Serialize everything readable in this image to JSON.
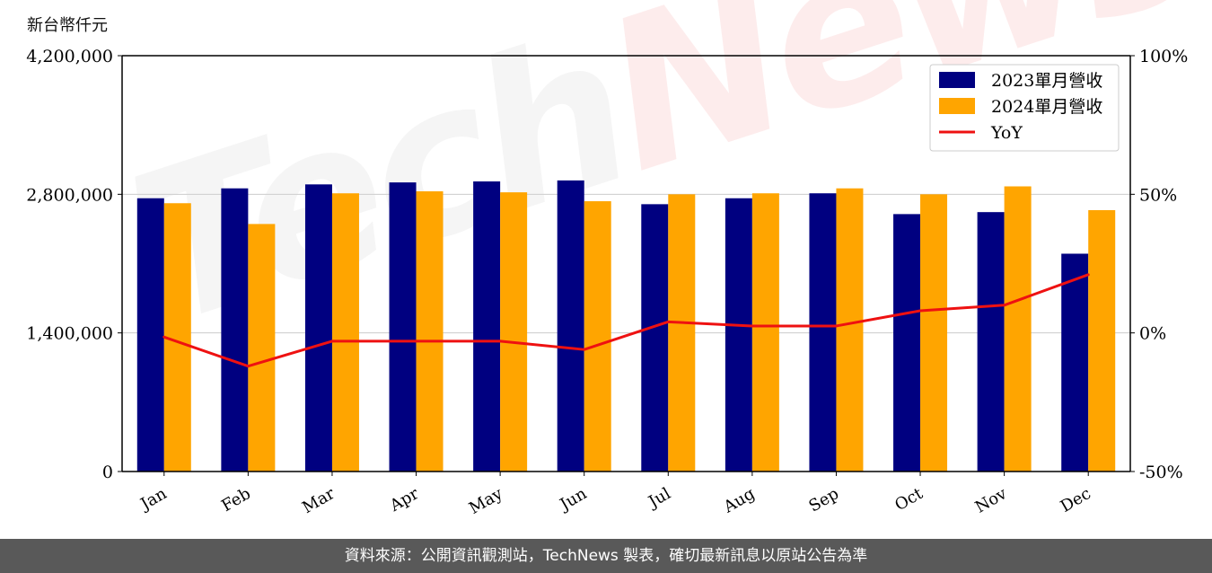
{
  "unit_label": "新台幣仟元",
  "watermark": {
    "part1": "Tech",
    "part2": "News"
  },
  "footer_text": "資料來源：公開資訊觀測站，TechNews 製表，確切最新訊息以原站公告為準",
  "colors": {
    "bar2023": "#000080",
    "bar2024": "#FFA500",
    "yoy": "#EE1111",
    "grid": "#cccccc"
  },
  "chart_data": {
    "type": "bar",
    "categories": [
      "Jan",
      "Feb",
      "Mar",
      "Apr",
      "May",
      "Jun",
      "Jul",
      "Aug",
      "Sep",
      "Oct",
      "Nov",
      "Dec"
    ],
    "series": [
      {
        "name": "2023單月營收",
        "type": "bar",
        "axis": "left",
        "values": [
          2760000,
          2860000,
          2900000,
          2920000,
          2930000,
          2940000,
          2700000,
          2760000,
          2810000,
          2600000,
          2620000,
          2200000
        ]
      },
      {
        "name": "2024單月營收",
        "type": "bar",
        "axis": "left",
        "values": [
          2710000,
          2500000,
          2810000,
          2830000,
          2820000,
          2730000,
          2800000,
          2810000,
          2860000,
          2800000,
          2880000,
          2640000
        ]
      },
      {
        "name": "YoY",
        "type": "line",
        "axis": "right",
        "values": [
          -1.5,
          -12,
          -3,
          -3,
          -3,
          -6,
          4,
          2.5,
          2.5,
          8,
          10,
          21
        ]
      }
    ],
    "y_left": {
      "ylim": [
        0,
        4200000
      ],
      "ticks": [
        "0",
        "1,400,000",
        "2,800,000",
        "4,200,000"
      ],
      "tick_values": [
        0,
        1400000,
        2800000,
        4200000
      ]
    },
    "y_right": {
      "ylim": [
        -50,
        100
      ],
      "ticks": [
        "-50%",
        "0%",
        "50%",
        "100%"
      ],
      "tick_values": [
        -50,
        0,
        50,
        100
      ]
    },
    "grid": "horizontal",
    "legend": "top-right"
  }
}
